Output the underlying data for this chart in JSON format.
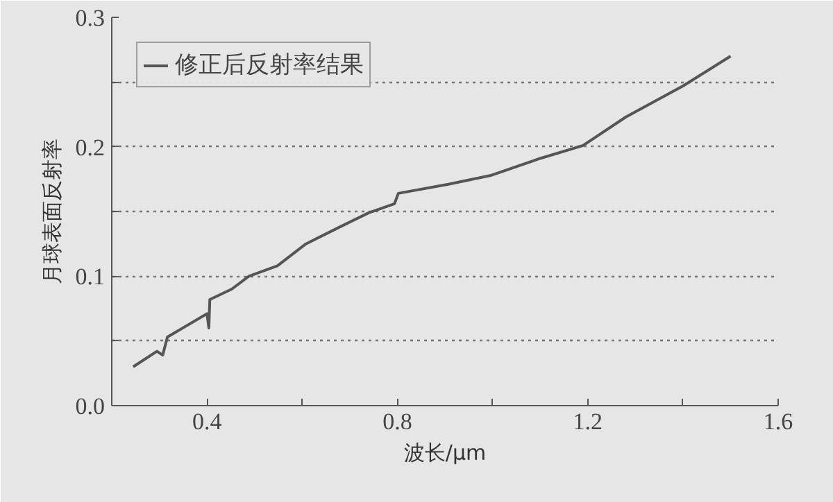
{
  "chart_data": {
    "type": "line",
    "xlabel": "波长/μm",
    "ylabel": "月球表面反射率",
    "xlim": [
      0.2,
      1.6
    ],
    "ylim": [
      0.0,
      0.3
    ],
    "xticks": [
      {
        "value": 0.2,
        "label": null
      },
      0.4,
      {
        "value": 0.6,
        "label": null
      },
      0.8,
      {
        "value": 1.0,
        "label": null
      },
      1.2,
      {
        "value": 1.4,
        "label": null
      },
      1.6
    ],
    "yticks": [
      "0.0",
      {
        "value": 0.05,
        "label": null
      },
      0.1,
      {
        "value": 0.15,
        "label": null
      },
      0.2,
      {
        "value": 0.25,
        "label": null
      },
      0.3
    ],
    "grid": "y",
    "legend": "top left",
    "marker": "none",
    "line_style": "solid",
    "series": [
      {
        "name": "修正后反射率结果",
        "color": "#555555",
        "x": [
          0.245,
          0.295,
          0.307,
          0.317,
          0.4,
          0.404,
          0.406,
          0.452,
          0.488,
          0.548,
          0.608,
          0.668,
          0.74,
          0.794,
          0.802,
          0.907,
          0.998,
          1.1,
          1.19,
          1.28,
          1.4,
          1.5
        ],
        "values": [
          0.03,
          0.042,
          0.039,
          0.053,
          0.071,
          0.06,
          0.082,
          0.09,
          0.1,
          0.108,
          0.125,
          0.136,
          0.149,
          0.156,
          0.164,
          0.171,
          0.178,
          0.191,
          0.201,
          0.223,
          0.247,
          0.27
        ]
      }
    ]
  }
}
